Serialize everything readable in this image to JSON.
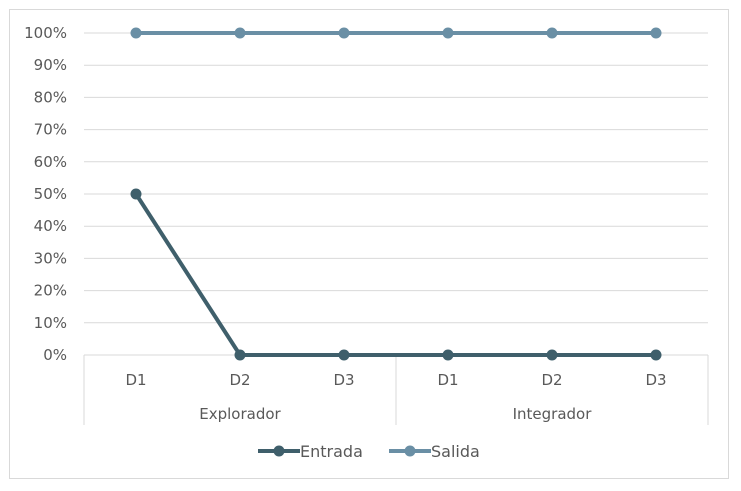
{
  "chart_data": {
    "type": "line",
    "categories": [
      "D1",
      "D2",
      "D3",
      "D1",
      "D2",
      "D3"
    ],
    "groups": [
      {
        "label": "Explorador",
        "span": 3
      },
      {
        "label": "Integrador",
        "span": 3
      }
    ],
    "series": [
      {
        "name": "Entrada",
        "values": [
          50,
          0,
          0,
          0,
          0,
          0
        ],
        "color": "#3f5f6b"
      },
      {
        "name": "Salida",
        "values": [
          100,
          100,
          100,
          100,
          100,
          100
        ],
        "color": "#6a8fa5"
      }
    ],
    "yticks": [
      "0%",
      "10%",
      "20%",
      "30%",
      "40%",
      "50%",
      "60%",
      "70%",
      "80%",
      "90%",
      "100%"
    ],
    "ylim": [
      0,
      100
    ],
    "grid": true,
    "legend": "bottom"
  }
}
